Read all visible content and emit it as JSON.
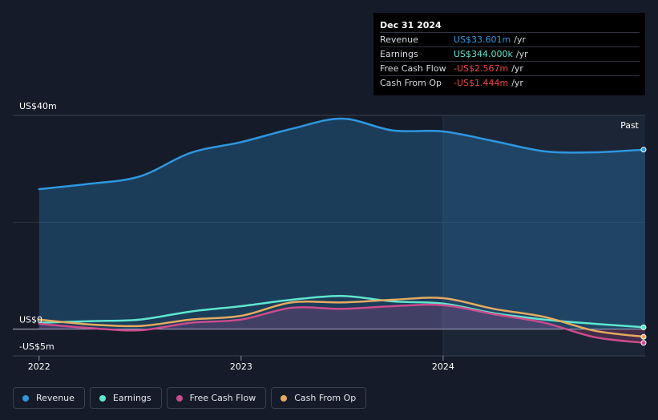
{
  "tooltip": {
    "date": "Dec 31 2024",
    "rows": [
      {
        "label": "Revenue",
        "value": "US$33.601m",
        "unit": "/yr",
        "color": "#2e97e0"
      },
      {
        "label": "Earnings",
        "value": "US$344.000k",
        "unit": "/yr",
        "color": "#5ee6cf"
      },
      {
        "label": "Free Cash Flow",
        "value": "-US$2.567m",
        "unit": "/yr",
        "color": "#ef4444"
      },
      {
        "label": "Cash From Op",
        "value": "-US$1.444m",
        "unit": "/yr",
        "color": "#ef4444"
      }
    ]
  },
  "past_label": "Past",
  "legend": [
    {
      "label": "Revenue",
      "color": "#2e97e0"
    },
    {
      "label": "Earnings",
      "color": "#5ee6cf"
    },
    {
      "label": "Free Cash Flow",
      "color": "#cc4b8c"
    },
    {
      "label": "Cash From Op",
      "color": "#e5aa60"
    }
  ],
  "chart_data": {
    "type": "line",
    "ylim": [
      -5,
      40
    ],
    "y_tick_labels": [
      {
        "value": 40,
        "label": "US$40m"
      },
      {
        "value": 0,
        "label": "US$0"
      },
      {
        "value": -5,
        "label": "-US$5m"
      }
    ],
    "x_tick_labels": [
      {
        "value": 2022,
        "label": "2022"
      },
      {
        "value": 2023,
        "label": "2023"
      },
      {
        "value": 2024,
        "label": "2024"
      }
    ],
    "xlim": [
      2021.87,
      2025.0
    ],
    "grid": true,
    "series": [
      {
        "name": "Revenue",
        "color": "#2e97e0",
        "area": true,
        "x": [
          2022.0,
          2022.25,
          2022.5,
          2022.75,
          2023.0,
          2023.25,
          2023.5,
          2023.75,
          2024.0,
          2024.25,
          2024.5,
          2024.75,
          2025.0
        ],
        "values": [
          26.2,
          27.2,
          28.6,
          33.0,
          35.0,
          37.5,
          39.4,
          37.2,
          37.0,
          35.2,
          33.3,
          33.1,
          33.6
        ]
      },
      {
        "name": "Earnings",
        "color": "#5ee6cf",
        "area": false,
        "x": [
          2022.0,
          2022.25,
          2022.5,
          2022.75,
          2023.0,
          2023.25,
          2023.5,
          2023.75,
          2024.0,
          2024.25,
          2024.5,
          2024.75,
          2025.0
        ],
        "values": [
          1.2,
          1.5,
          1.8,
          3.3,
          4.3,
          5.5,
          6.2,
          5.2,
          4.8,
          3.0,
          1.8,
          1.0,
          0.344
        ]
      },
      {
        "name": "Free Cash Flow",
        "color": "#cc4b8c",
        "area": true,
        "x": [
          2022.0,
          2022.25,
          2022.5,
          2022.75,
          2023.0,
          2023.25,
          2023.5,
          2023.75,
          2024.0,
          2024.25,
          2024.5,
          2024.75,
          2025.0
        ],
        "values": [
          1.0,
          0.2,
          -0.2,
          1.2,
          1.8,
          4.0,
          3.8,
          4.3,
          4.5,
          2.8,
          1.2,
          -1.5,
          -2.567
        ]
      },
      {
        "name": "Cash From Op",
        "color": "#e5aa60",
        "area": false,
        "x": [
          2022.0,
          2022.25,
          2022.5,
          2022.75,
          2023.0,
          2023.25,
          2023.5,
          2023.75,
          2024.0,
          2024.25,
          2024.5,
          2024.75,
          2025.0
        ],
        "values": [
          1.8,
          0.9,
          0.6,
          1.8,
          2.5,
          5.0,
          5.0,
          5.5,
          5.8,
          3.8,
          2.3,
          -0.3,
          -1.444
        ]
      }
    ]
  }
}
